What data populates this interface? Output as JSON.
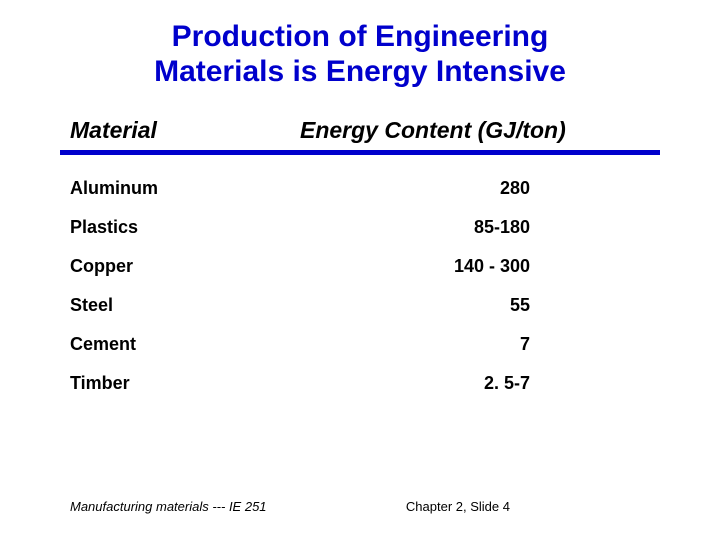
{
  "title_line1": "Production of Engineering",
  "title_line2": "Materials is Energy Intensive",
  "title_color": "#0000cc",
  "title_fontsize": 30,
  "table": {
    "header_material": "Material",
    "header_energy": "Energy Content (GJ/ton)",
    "header_fontsize": 23,
    "header_color": "#000000",
    "rule_color": "#0000cc",
    "row_fontsize": 18,
    "row_color": "#000000",
    "rows": [
      {
        "material": "Aluminum",
        "energy": "280"
      },
      {
        "material": "Plastics",
        "energy": "85-180"
      },
      {
        "material": "Copper",
        "energy": "140 - 300"
      },
      {
        "material": "Steel",
        "energy": "55"
      },
      {
        "material": "Cement",
        "energy": "7"
      },
      {
        "material": "Timber",
        "energy": "2. 5-7"
      }
    ]
  },
  "footer": {
    "left": "Manufacturing materials  --- IE 251",
    "right": "Chapter 2,   Slide 4",
    "fontsize": 13,
    "color": "#000000"
  }
}
